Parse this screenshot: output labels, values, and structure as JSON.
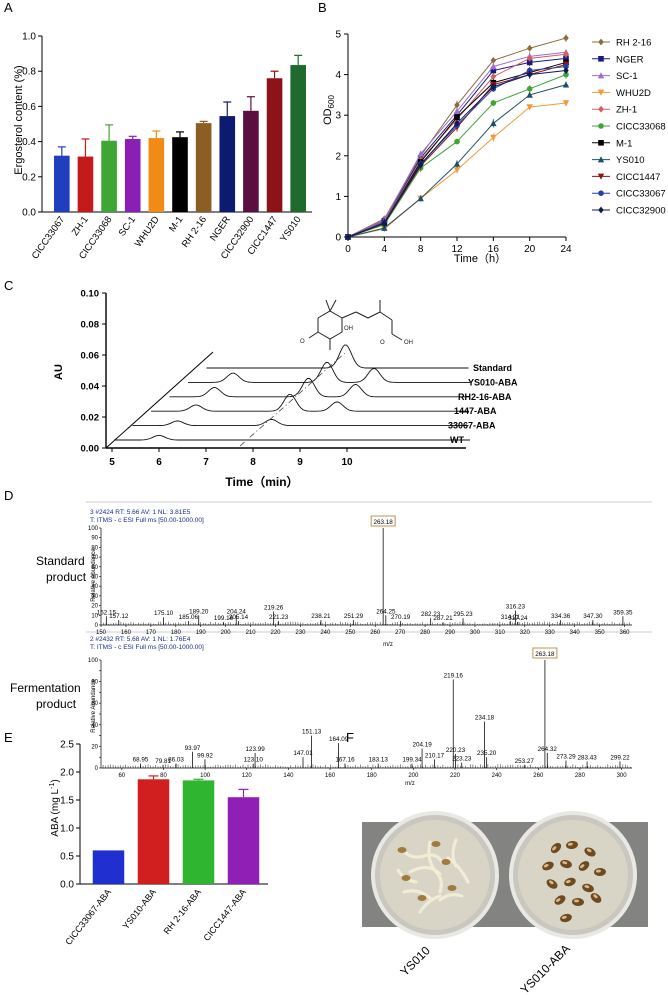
{
  "panels": {
    "A": {
      "letter": "A",
      "chart_data": {
        "type": "bar",
        "ylabel": "Ergosterol content (%)",
        "ylim": [
          0,
          1.0
        ],
        "yticks": [
          "0.0",
          "0.2",
          "0.4",
          "0.6",
          "0.8",
          "1.0"
        ],
        "categories": [
          "CICC33067",
          "ZH-1",
          "CICC33068",
          "SC-1",
          "WHU2D",
          "M-1",
          "RH 2-16",
          "NGER",
          "CICC32900",
          "CICC1447",
          "YS010"
        ],
        "values": [
          0.32,
          0.315,
          0.405,
          0.415,
          0.42,
          0.425,
          0.505,
          0.545,
          0.575,
          0.76,
          0.835
        ],
        "errors": [
          0.05,
          0.1,
          0.09,
          0.015,
          0.04,
          0.03,
          0.01,
          0.08,
          0.08,
          0.04,
          0.055
        ],
        "colors": [
          "#1f3fbf",
          "#c41a1a",
          "#3fa535",
          "#8a1fb5",
          "#f28a16",
          "#000000",
          "#8b5e23",
          "#0c1a70",
          "#5a0f40",
          "#8c1418",
          "#1f6b2e"
        ]
      }
    },
    "B": {
      "letter": "B",
      "chart_data": {
        "type": "line",
        "xlabel": "Time（h）",
        "ylabel": "OD",
        "ylabel_sub": "600",
        "x": [
          0,
          4,
          8,
          12,
          16,
          20,
          24
        ],
        "xlim": [
          0,
          24
        ],
        "ylim": [
          0,
          5
        ],
        "yticks": [
          "0",
          "1",
          "2",
          "3",
          "4",
          "5"
        ],
        "xticks": [
          "0",
          "4",
          "8",
          "12",
          "16",
          "20",
          "24"
        ],
        "legend_position": "right",
        "series": [
          {
            "name": "RH 2-16",
            "color": "#8b6a3e",
            "marker": "diamond",
            "values": [
              0,
              0.45,
              2.0,
              3.25,
              4.35,
              4.65,
              4.9
            ]
          },
          {
            "name": "NGER",
            "color": "#1a1a80",
            "marker": "square",
            "values": [
              0,
              0.4,
              1.95,
              3.0,
              4.1,
              4.3,
              4.4
            ]
          },
          {
            "name": "SC-1",
            "color": "#9a6fd0",
            "marker": "triangle",
            "values": [
              0,
              0.42,
              2.05,
              3.1,
              4.2,
              4.45,
              4.55
            ]
          },
          {
            "name": "WHU2D",
            "color": "#f29a3a",
            "marker": "triangle-down",
            "values": [
              0,
              0.2,
              0.95,
              1.65,
              2.45,
              3.2,
              3.3
            ]
          },
          {
            "name": "ZH-1",
            "color": "#d0605a",
            "marker": "diamond",
            "values": [
              0,
              0.38,
              1.9,
              2.9,
              3.95,
              4.4,
              4.5
            ]
          },
          {
            "name": "CICC33068",
            "color": "#3fa535",
            "marker": "circle",
            "values": [
              0,
              0.3,
              1.7,
              2.35,
              3.3,
              3.65,
              4.0
            ]
          },
          {
            "name": "M-1",
            "color": "#000000",
            "marker": "square",
            "values": [
              0,
              0.35,
              1.85,
              2.95,
              3.8,
              4.05,
              4.3
            ]
          },
          {
            "name": "YS010",
            "color": "#1f4f6a",
            "marker": "triangle",
            "values": [
              0,
              0.22,
              0.95,
              1.8,
              2.8,
              3.5,
              3.75
            ]
          },
          {
            "name": "CICC1447",
            "color": "#8c1418",
            "marker": "triangle-down",
            "values": [
              0,
              0.33,
              1.75,
              2.7,
              3.75,
              4.0,
              4.25
            ]
          },
          {
            "name": "CICC33067",
            "color": "#2a3fa0",
            "marker": "circle",
            "values": [
              0,
              0.36,
              1.8,
              2.75,
              3.65,
              4.1,
              4.2
            ]
          },
          {
            "name": "CICC32900",
            "color": "#0c1a55",
            "marker": "diamond",
            "values": [
              0,
              0.34,
              1.78,
              2.8,
              3.7,
              4.0,
              4.1
            ]
          }
        ]
      }
    },
    "C": {
      "letter": "C",
      "chart_data": {
        "type": "line",
        "ylabel": "AU",
        "xlabel": "Time（min）",
        "yticks": [
          "0.00",
          "0.02",
          "0.04",
          "0.06",
          "0.08",
          "0.10"
        ],
        "xticks": [
          "5",
          "6",
          "7",
          "8",
          "9",
          "10"
        ],
        "ylim": [
          0,
          0.1
        ],
        "xlim": [
          4.5,
          11
        ],
        "traces": [
          {
            "name": "WT",
            "peaks": [
              [
                6.0,
                0.003
              ]
            ]
          },
          {
            "name": "33067-ABA",
            "peaks": [
              [
                6.0,
                0.003
              ],
              [
                8.0,
                0.004
              ]
            ]
          },
          {
            "name": "1447-ABA",
            "peaks": [
              [
                6.0,
                0.004
              ],
              [
                8.0,
                0.011
              ],
              [
                9.0,
                0.006
              ]
            ]
          },
          {
            "name": "RH2-16-ABA",
            "peaks": [
              [
                6.0,
                0.006
              ],
              [
                8.0,
                0.012
              ],
              [
                9.0,
                0.008
              ]
            ]
          },
          {
            "name": "YS010-ABA",
            "peaks": [
              [
                6.0,
                0.006
              ],
              [
                8.0,
                0.013
              ],
              [
                9.0,
                0.009
              ]
            ]
          },
          {
            "name": "Standard",
            "peaks": [
              [
                8.0,
                0.015
              ]
            ]
          }
        ]
      }
    },
    "D": {
      "letter": "D",
      "spectra": [
        {
          "label": "Standard product",
          "header1": "3 #2424  RT: 5.66  AV: 1  NL: 3.81E5",
          "header2": "T: ITMS - c ESI Full ms [50.00-1000.00]",
          "ylabel": "Relative Abundance",
          "xlabel": "m/z",
          "yticks": [
            "0",
            "10",
            "20",
            "30",
            "40",
            "50",
            "60",
            "70",
            "80",
            "90",
            "100"
          ],
          "chart_data": {
            "type": "bar",
            "xlim": [
              150,
              363
            ],
            "ylim": [
              0,
              100
            ],
            "xticks": [
              "150",
              "160",
              "170",
              "180",
              "190",
              "200",
              "210",
              "220",
              "230",
              "240",
              "250",
              "260",
              "270",
              "280",
              "290",
              "300",
              "310",
              "320",
              "330",
              "340",
              "350",
              "360"
            ],
            "peaks": [
              {
                "mz": 152.15,
                "label": "152.15",
                "rel": 9
              },
              {
                "mz": 157.12,
                "label": "157.12",
                "rel": 5
              },
              {
                "mz": 175.1,
                "label": "175.10",
                "rel": 8
              },
              {
                "mz": 185.06,
                "label": "185.06",
                "rel": 4
              },
              {
                "mz": 189.2,
                "label": "189.20",
                "rel": 10
              },
              {
                "mz": 199.16,
                "label": "199.16",
                "rel": 3
              },
              {
                "mz": 204.24,
                "label": "204.24",
                "rel": 10
              },
              {
                "mz": 205.14,
                "label": "205.14",
                "rel": 4
              },
              {
                "mz": 219.26,
                "label": "219.26",
                "rel": 14
              },
              {
                "mz": 221.23,
                "label": "221.23",
                "rel": 4
              },
              {
                "mz": 238.21,
                "label": "238.21",
                "rel": 5
              },
              {
                "mz": 251.29,
                "label": "251.29",
                "rel": 5
              },
              {
                "mz": 263.18,
                "label": "263.18",
                "rel": 100,
                "boxed": true
              },
              {
                "mz": 264.25,
                "label": "264.25",
                "rel": 10
              },
              {
                "mz": 270.19,
                "label": "270.19",
                "rel": 4
              },
              {
                "mz": 282.23,
                "label": "282.23",
                "rel": 7
              },
              {
                "mz": 287.21,
                "label": "287.21",
                "rel": 3
              },
              {
                "mz": 295.23,
                "label": "295.23",
                "rel": 7
              },
              {
                "mz": 314.21,
                "label": "314.21",
                "rel": 4
              },
              {
                "mz": 316.23,
                "label": "316.23",
                "rel": 15
              },
              {
                "mz": 317.24,
                "label": "317.24",
                "rel": 3
              },
              {
                "mz": 334.36,
                "label": "334.36",
                "rel": 5
              },
              {
                "mz": 347.3,
                "label": "347.30",
                "rel": 5
              },
              {
                "mz": 359.35,
                "label": "359.35",
                "rel": 9
              }
            ]
          }
        },
        {
          "label": "Fermentation product",
          "header1": "2 #2432  RT: 5.68  AV: 1  NL: 1.76E4",
          "header2": "T: ITMS - c ESI Full ms [50.00-1000.00]",
          "ylabel": "Relative Abundance",
          "xlabel": "m/z",
          "yticks": [
            "0",
            "10",
            "20",
            "30",
            "40",
            "50",
            "60",
            "70",
            "80",
            "90",
            "100"
          ],
          "chart_data": {
            "type": "bar",
            "xlim": [
              50,
              305
            ],
            "ylim": [
              0,
              100
            ],
            "xticks": [
              "60",
              "80",
              "100",
              "120",
              "140",
              "160",
              "180",
              "200",
              "220",
              "240",
              "260",
              "280",
              "300"
            ],
            "peaks": [
              {
                "mz": 68.95,
                "label": "68.95",
                "rel": 4
              },
              {
                "mz": 79.81,
                "label": "79.81",
                "rel": 3
              },
              {
                "mz": 86.03,
                "label": "86.03",
                "rel": 4
              },
              {
                "mz": 93.97,
                "label": "93.97",
                "rel": 15
              },
              {
                "mz": 99.92,
                "label": "99.92",
                "rel": 8
              },
              {
                "mz": 123.1,
                "label": "123.10",
                "rel": 4
              },
              {
                "mz": 123.99,
                "label": "123.99",
                "rel": 14
              },
              {
                "mz": 147.01,
                "label": "147.01",
                "rel": 10
              },
              {
                "mz": 151.13,
                "label": "151.13",
                "rel": 30
              },
              {
                "mz": 164.09,
                "label": "164.09",
                "rel": 23
              },
              {
                "mz": 167.16,
                "label": "167.16",
                "rel": 4
              },
              {
                "mz": 183.13,
                "label": "183.13",
                "rel": 4
              },
              {
                "mz": 199.34,
                "label": "199.34",
                "rel": 4
              },
              {
                "mz": 204.19,
                "label": "204.19",
                "rel": 18
              },
              {
                "mz": 210.17,
                "label": "210.17",
                "rel": 8
              },
              {
                "mz": 219.16,
                "label": "219.16",
                "rel": 82
              },
              {
                "mz": 220.23,
                "label": "220.23",
                "rel": 13
              },
              {
                "mz": 223.23,
                "label": "223.23",
                "rel": 5
              },
              {
                "mz": 234.18,
                "label": "234.18",
                "rel": 43
              },
              {
                "mz": 235.2,
                "label": "235.20",
                "rel": 10
              },
              {
                "mz": 253.27,
                "label": "253.27",
                "rel": 3
              },
              {
                "mz": 263.18,
                "label": "263.18",
                "rel": 100,
                "boxed": true
              },
              {
                "mz": 264.32,
                "label": "264.32",
                "rel": 14
              },
              {
                "mz": 273.29,
                "label": "273.29",
                "rel": 7
              },
              {
                "mz": 283.43,
                "label": "283.43",
                "rel": 6
              },
              {
                "mz": 299.22,
                "label": "299.22",
                "rel": 6
              }
            ]
          }
        }
      ]
    },
    "E": {
      "letter": "E",
      "chart_data": {
        "type": "bar",
        "ylabel": "ABA (mg L",
        "ylabel_sup": "-1",
        "ylabel_end": ")",
        "ylim": [
          0,
          2.5
        ],
        "yticks": [
          "0.0",
          "0.5",
          "1.0",
          "1.5",
          "2.0",
          "2.5"
        ],
        "categories": [
          "CICC33067-ABA",
          "YS010-ABA",
          "RH 2-16-ABA",
          "CICC1447-ABA"
        ],
        "values": [
          0.6,
          1.87,
          1.85,
          1.55
        ],
        "errors": [
          0.0,
          0.06,
          0.02,
          0.14
        ],
        "colors": [
          "#1f2fd0",
          "#d11f1f",
          "#2fb52f",
          "#8f1fb5"
        ]
      }
    },
    "F": {
      "letter": "F",
      "labels": [
        "YS010",
        "YS010-ABA"
      ]
    }
  }
}
